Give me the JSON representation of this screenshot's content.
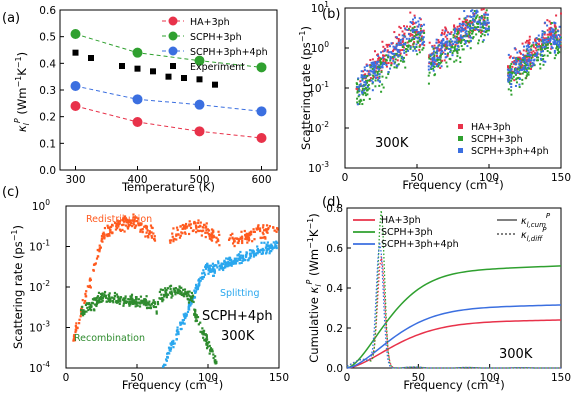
{
  "chart_data": [
    {
      "panel": "(a)",
      "type": "line",
      "xlabel": "Temperature (K)",
      "ylabel": "κlP (Wm⁻¹K⁻¹)",
      "xlim": [
        275,
        625
      ],
      "ylim": [
        0.0,
        0.6
      ],
      "xticks": [
        300,
        400,
        500,
        600
      ],
      "yticks": [
        "0.0",
        "0.1",
        "0.2",
        "0.3",
        "0.4",
        "0.5",
        "0.6"
      ],
      "legend_position": "top-right",
      "series": [
        {
          "name": "HA+3ph",
          "color": "#e8324a",
          "style": "dashed-with-markers",
          "x": [
            300,
            400,
            500,
            600
          ],
          "y": [
            0.24,
            0.18,
            0.145,
            0.12
          ]
        },
        {
          "name": "SCPH+3ph",
          "color": "#2fa02f",
          "style": "dashed-with-markers",
          "x": [
            300,
            400,
            500,
            600
          ],
          "y": [
            0.51,
            0.44,
            0.41,
            0.385
          ]
        },
        {
          "name": "SCPH+3ph+4ph",
          "color": "#3b6fe0",
          "style": "dashed-with-markers",
          "x": [
            300,
            400,
            500,
            600
          ],
          "y": [
            0.315,
            0.265,
            0.245,
            0.22
          ]
        },
        {
          "name": "Experiment",
          "color": "#000000",
          "style": "square-markers",
          "x": [
            300,
            325,
            375,
            400,
            425,
            450,
            475,
            500,
            525
          ],
          "y": [
            0.44,
            0.42,
            0.39,
            0.38,
            0.37,
            0.35,
            0.345,
            0.34,
            0.32
          ]
        }
      ]
    },
    {
      "panel": "(b)",
      "type": "scatter",
      "xlabel": "Frequency (cm⁻¹)",
      "ylabel": "Scattering rate (ps⁻¹)",
      "xlim": [
        0,
        150
      ],
      "ylim": [
        0.001,
        10
      ],
      "yscale": "log",
      "xticks": [
        0,
        50,
        100,
        150
      ],
      "annotation": "300K",
      "legend_position": "bottom-right",
      "series": [
        {
          "name": "HA+3ph",
          "color": "#e8324a"
        },
        {
          "name": "SCPH+3ph",
          "color": "#2fa02f"
        },
        {
          "name": "SCPH+3ph+4ph",
          "color": "#3b6fe0"
        }
      ]
    },
    {
      "panel": "(c)",
      "type": "scatter",
      "xlabel": "Frequency (cm⁻¹)",
      "ylabel": "Scattering rate (ps⁻¹)",
      "xlim": [
        0,
        150
      ],
      "ylim": [
        0.0001,
        1
      ],
      "yscale": "log",
      "xticks": [
        0,
        50,
        100,
        150
      ],
      "annotations": [
        "Redistribution",
        "Splitting",
        "Recombination",
        "SCPH+4ph",
        "300K"
      ],
      "series": [
        {
          "name": "Redistribution",
          "color": "#ff5a1f"
        },
        {
          "name": "Splitting",
          "color": "#2aa7ee"
        },
        {
          "name": "Recombination",
          "color": "#2e8b2e"
        }
      ]
    },
    {
      "panel": "(d)",
      "type": "line",
      "xlabel": "Frequency (cm⁻¹)",
      "ylabel": "Cumulative κlP (Wm⁻¹K⁻¹)",
      "xlim": [
        0,
        150
      ],
      "ylim": [
        0.0,
        0.8
      ],
      "xticks": [
        0,
        50,
        100,
        150
      ],
      "yticks": [
        "0.0",
        "0.2",
        "0.4",
        "0.6",
        "0.8"
      ],
      "annotation": "300K",
      "legend_position": "top",
      "series": [
        {
          "name": "HA+3ph",
          "color": "#e8324a",
          "final_value": 0.24
        },
        {
          "name": "SCPH+3ph",
          "color": "#2fa02f",
          "final_value": 0.51
        },
        {
          "name": "SCPH+3ph+4ph",
          "color": "#3b6fe0",
          "final_value": 0.315
        }
      ],
      "style_legend": [
        {
          "style": "solid",
          "label": "κl,cumP"
        },
        {
          "style": "dotted",
          "label": "κl,diffP"
        }
      ]
    }
  ],
  "labels": {
    "panel_a": "(a)",
    "panel_b": "(b)",
    "panel_c": "(c)",
    "panel_d": "(d)",
    "a_xlabel": "Temperature (K)",
    "b_xlabel": "Frequency (cm",
    "b_ylabel": "Scattering rate (ps",
    "d_ylabel": "Cumulative",
    "b_temp": "300K",
    "c_redistribution": "Redistribution",
    "c_splitting": "Splitting",
    "c_recombination": "Recombination",
    "c_method": "SCPH+4ph",
    "c_temp": "300K",
    "d_temp": "300K",
    "legend_ha": "HA+3ph",
    "legend_scph3": "SCPH+3ph",
    "legend_scph34": "SCPH+3ph+4ph",
    "legend_exp": "Experiment",
    "kappa_cum_sub": "l,cum",
    "kappa_diff_sub": "l,diff"
  },
  "colors": {
    "red": "#e8324a",
    "green": "#2fa02f",
    "blue": "#3b6fe0",
    "orange": "#ff5a1f",
    "lightblue": "#2aa7ee",
    "darkgreen": "#2e8b2e"
  }
}
